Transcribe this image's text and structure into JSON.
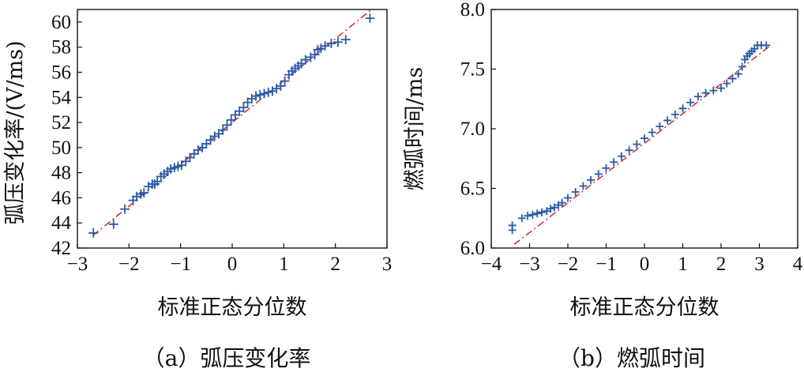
{
  "chart_data": [
    {
      "type": "scatter",
      "caption": "（a）弧压变化率",
      "xlabel": "标准正态分位数",
      "ylabel": "弧压变化率/(V/ms)",
      "xlim": [
        -3,
        3
      ],
      "ylim": [
        42,
        61
      ],
      "xticks": [
        "−3",
        "−2",
        "−1",
        "0",
        "1",
        "2",
        "3"
      ],
      "xtick_values": [
        -3,
        -2,
        -1,
        0,
        1,
        2,
        3
      ],
      "yticks": [
        "42",
        "44",
        "46",
        "48",
        "50",
        "52",
        "54",
        "56",
        "58",
        "60"
      ],
      "ytick_values": [
        42,
        44,
        46,
        48,
        50,
        52,
        54,
        56,
        58,
        60
      ],
      "marker_color": "#2a5aa8",
      "fit_line": {
        "x": [
          -2.7,
          2.7
        ],
        "y": [
          43.0,
          61.0
        ],
        "color": "#d01c1c",
        "style": "dash-dot"
      },
      "series": [
        {
          "x": [
            -2.69,
            -2.3,
            -2.08,
            -1.92,
            -1.85,
            -1.77,
            -1.71,
            -1.62,
            -1.55,
            -1.5,
            -1.45,
            -1.38,
            -1.32,
            -1.25,
            -1.19,
            -1.12,
            -1.05,
            -0.98,
            -0.9,
            -0.82,
            -0.74,
            -0.66,
            -0.58,
            -0.5,
            -0.42,
            -0.34,
            -0.26,
            -0.18,
            -0.1,
            -0.02,
            0.06,
            0.14,
            0.22,
            0.3,
            0.38,
            0.46,
            0.54,
            0.62,
            0.7,
            0.78,
            0.86,
            0.94,
            1.02,
            1.1,
            1.16,
            1.22,
            1.28,
            1.34,
            1.42,
            1.52,
            1.6,
            1.66,
            1.72,
            1.8,
            1.92,
            2.05,
            2.2,
            2.67
          ],
          "y": [
            43.2,
            43.9,
            45.1,
            45.8,
            46.1,
            46.3,
            46.4,
            46.9,
            47.1,
            47.1,
            47.3,
            47.7,
            47.9,
            48.1,
            48.3,
            48.4,
            48.5,
            48.6,
            48.9,
            49.2,
            49.5,
            49.8,
            50.0,
            50.3,
            50.6,
            50.9,
            51.1,
            51.4,
            51.8,
            52.2,
            52.6,
            52.9,
            53.2,
            53.6,
            53.9,
            54.1,
            54.2,
            54.3,
            54.4,
            54.5,
            54.7,
            54.9,
            55.3,
            55.8,
            56.1,
            56.3,
            56.5,
            56.7,
            57.0,
            57.2,
            57.4,
            57.8,
            57.9,
            58.1,
            58.3,
            58.4,
            58.6,
            60.3
          ]
        }
      ]
    },
    {
      "type": "scatter",
      "caption": "（b）燃弧时间",
      "xlabel": "标准正态分位数",
      "ylabel": "燃弧时间/ms",
      "xlim": [
        -4,
        4
      ],
      "ylim": [
        6.0,
        8.0
      ],
      "xticks": [
        "−4",
        "−3",
        "−2",
        "−1",
        "0",
        "1",
        "2",
        "3",
        "4"
      ],
      "xtick_values": [
        -4,
        -3,
        -2,
        -1,
        0,
        1,
        2,
        3,
        4
      ],
      "yticks": [
        "6.0",
        "6.5",
        "7.0",
        "7.5",
        "8.0"
      ],
      "ytick_values": [
        6.0,
        6.5,
        7.0,
        7.5,
        8.0
      ],
      "marker_color": "#2a5aa8",
      "fit_line": {
        "x": [
          -3.4,
          3.3
        ],
        "y": [
          6.03,
          7.7
        ],
        "color": "#d01c1c",
        "style": "dash-dot"
      },
      "series": [
        {
          "x": [
            -3.45,
            -3.45,
            -3.2,
            -3.05,
            -2.92,
            -2.8,
            -2.68,
            -2.55,
            -2.45,
            -2.35,
            -2.25,
            -2.15,
            -2.0,
            -1.8,
            -1.6,
            -1.4,
            -1.2,
            -1.0,
            -0.8,
            -0.6,
            -0.4,
            -0.2,
            0.0,
            0.2,
            0.4,
            0.6,
            0.8,
            1.0,
            1.2,
            1.4,
            1.6,
            1.8,
            2.0,
            2.15,
            2.3,
            2.45,
            2.55,
            2.62,
            2.68,
            2.74,
            2.8,
            2.87,
            2.95,
            3.05,
            3.18
          ],
          "y": [
            6.15,
            6.19,
            6.25,
            6.27,
            6.28,
            6.29,
            6.3,
            6.31,
            6.33,
            6.34,
            6.36,
            6.38,
            6.42,
            6.47,
            6.52,
            6.57,
            6.62,
            6.67,
            6.72,
            6.77,
            6.82,
            6.87,
            6.92,
            6.97,
            7.02,
            7.07,
            7.12,
            7.17,
            7.22,
            7.27,
            7.3,
            7.32,
            7.34,
            7.38,
            7.42,
            7.46,
            7.52,
            7.58,
            7.61,
            7.63,
            7.65,
            7.67,
            7.7,
            7.7,
            7.7
          ]
        }
      ]
    }
  ]
}
